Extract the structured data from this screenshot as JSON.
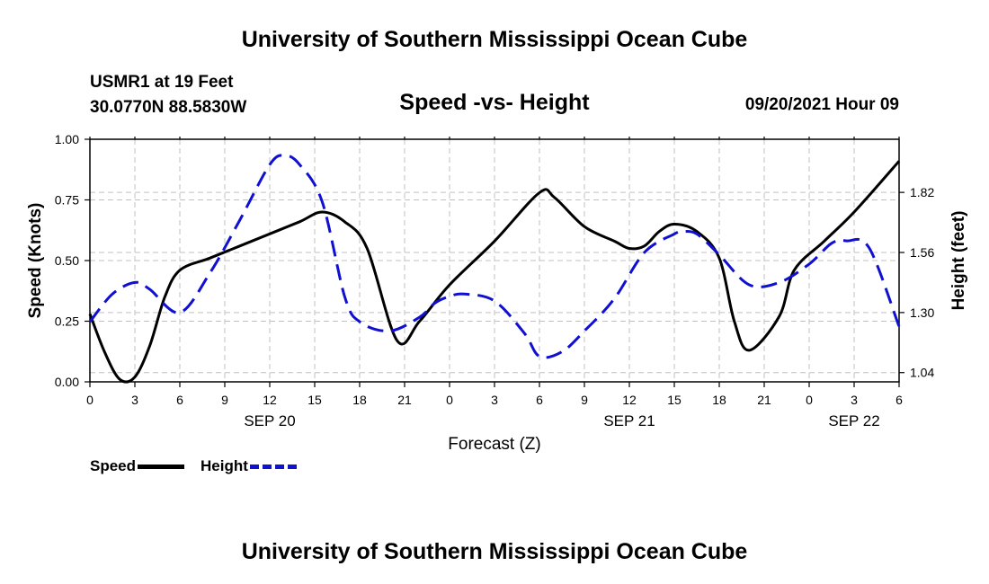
{
  "header": {
    "title_top": "University of Southern Mississippi Ocean Cube",
    "title_bottom": "University of Southern Mississippi Ocean Cube",
    "station": "USMR1 at 19 Feet",
    "coords": "30.0770N  88.5830W",
    "datetime": "09/20/2021 Hour 09"
  },
  "legend": {
    "speed_label": "Speed",
    "height_label": "Height"
  },
  "colors": {
    "speed": "#000000",
    "height": "#1010d0",
    "grid": "#c0c0c0"
  },
  "chart_data": {
    "type": "line",
    "title": "Speed -vs- Height",
    "xlabel": "Forecast (Z)",
    "ylabel_left": "Speed (Knots)",
    "ylabel_right": "Height (feet)",
    "x_range": [
      0,
      54
    ],
    "xticks": [
      "0",
      "3",
      "6",
      "9",
      "12",
      "15",
      "18",
      "21",
      "0",
      "3",
      "6",
      "9",
      "12",
      "15",
      "18",
      "21",
      "0",
      "3",
      "6"
    ],
    "date_labels": [
      {
        "x": 12,
        "text": "SEP 20"
      },
      {
        "x": 36,
        "text": "SEP 21"
      },
      {
        "x": 51,
        "text": "SEP 22"
      }
    ],
    "ylim_left": [
      0,
      1
    ],
    "yticks_left": [
      "0.00",
      "0.25",
      "0.50",
      "0.75",
      "1.00"
    ],
    "ylim_right": [
      1.0,
      2.05
    ],
    "yticks_right": [
      {
        "v": 1.04,
        "label": "1.04"
      },
      {
        "v": 1.3,
        "label": "1.30"
      },
      {
        "v": 1.56,
        "label": "1.56"
      },
      {
        "v": 1.82,
        "label": "1.82"
      }
    ],
    "grid": true,
    "series": [
      {
        "name": "Speed",
        "axis": "left",
        "x": [
          0,
          1,
          2,
          3,
          4,
          5,
          6,
          8,
          10,
          12,
          14,
          15.5,
          17,
          18.5,
          20.5,
          22,
          24,
          27,
          30,
          31,
          33,
          35,
          36,
          37,
          38,
          39,
          40.5,
          42,
          43,
          44,
          46,
          47,
          49,
          51,
          54
        ],
        "values": [
          0.28,
          0.12,
          0.01,
          0.02,
          0.15,
          0.35,
          0.46,
          0.51,
          0.56,
          0.61,
          0.66,
          0.7,
          0.66,
          0.55,
          0.17,
          0.25,
          0.4,
          0.58,
          0.78,
          0.76,
          0.64,
          0.58,
          0.55,
          0.56,
          0.62,
          0.65,
          0.62,
          0.51,
          0.25,
          0.13,
          0.27,
          0.46,
          0.58,
          0.7,
          0.91
        ]
      },
      {
        "name": "Height",
        "axis": "right",
        "x": [
          0,
          1.5,
          3,
          4,
          6,
          8,
          10,
          12,
          13,
          14,
          15.5,
          17,
          18,
          20,
          22,
          23,
          24,
          25,
          27,
          29,
          30,
          31.5,
          33,
          35,
          37,
          39,
          39.5,
          40.5,
          42,
          44,
          46,
          48,
          49.5,
          50.5,
          52,
          54
        ],
        "values": [
          1.26,
          1.38,
          1.43,
          1.4,
          1.3,
          1.47,
          1.7,
          1.94,
          1.98,
          1.94,
          1.78,
          1.37,
          1.26,
          1.22,
          1.28,
          1.34,
          1.37,
          1.38,
          1.35,
          1.21,
          1.11,
          1.13,
          1.22,
          1.36,
          1.56,
          1.64,
          1.65,
          1.64,
          1.55,
          1.42,
          1.43,
          1.51,
          1.6,
          1.61,
          1.58,
          1.24
        ]
      }
    ]
  }
}
